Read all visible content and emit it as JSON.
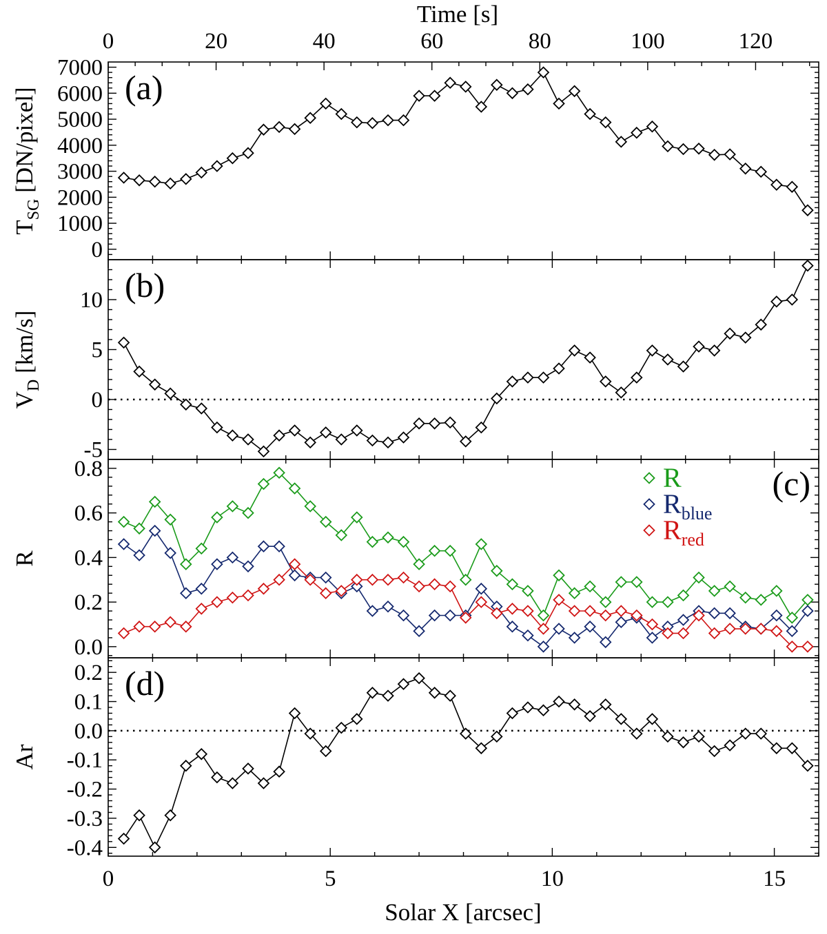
{
  "chart_data": {
    "type": "line",
    "figure": {
      "x_bottom_label": "Solar X [arcsec]",
      "x_top_label": "Time [s]",
      "x_bottom_range": [
        0,
        16
      ],
      "x_top_range": [
        0,
        131.7
      ],
      "x_bottom_ticks": [
        "0",
        "5",
        "10",
        "15"
      ],
      "x_bottom_tick_values": [
        0,
        5,
        10,
        15
      ],
      "x_top_ticks": [
        "0",
        "20",
        "40",
        "60",
        "80",
        "100",
        "120"
      ],
      "x_top_tick_values": [
        0,
        20,
        40,
        60,
        80,
        100,
        120
      ],
      "x": [
        0.35,
        0.7,
        1.05,
        1.4,
        1.75,
        2.1,
        2.45,
        2.8,
        3.15,
        3.5,
        3.85,
        4.2,
        4.55,
        4.9,
        5.25,
        5.6,
        5.95,
        6.3,
        6.65,
        7.0,
        7.35,
        7.7,
        8.05,
        8.4,
        8.75,
        9.1,
        9.45,
        9.8,
        10.15,
        10.5,
        10.85,
        11.2,
        11.55,
        11.9,
        12.25,
        12.6,
        12.95,
        13.3,
        13.65,
        14.0,
        14.35,
        14.7,
        15.05,
        15.4,
        15.75
      ]
    },
    "panels": [
      {
        "panel_label": "(a)",
        "ylabel_main": "T",
        "ylabel_sub": "SG",
        "ylabel_rest": " [DN/pixel]",
        "ylim": [
          -400,
          7200
        ],
        "y_ticks": [
          "0",
          "1000",
          "2000",
          "3000",
          "4000",
          "5000",
          "6000",
          "7000"
        ],
        "y_tick_values": [
          0,
          1000,
          2000,
          3000,
          4000,
          5000,
          6000,
          7000
        ],
        "zero_line": false,
        "series": [
          {
            "name": "T_SG",
            "color": "#000000",
            "values": [
              2750,
              2650,
              2600,
              2530,
              2700,
              2950,
              3200,
              3500,
              3700,
              4600,
              4700,
              4620,
              5050,
              5600,
              5200,
              4880,
              4850,
              4960,
              4960,
              5900,
              5900,
              6400,
              6250,
              5480,
              6320,
              6000,
              6150,
              6800,
              5600,
              6080,
              5200,
              4880,
              4130,
              4480,
              4720,
              3960,
              3850,
              3870,
              3630,
              3650,
              3100,
              2980,
              2480,
              2400,
              1500
            ]
          }
        ]
      },
      {
        "panel_label": "(b)",
        "ylabel_main": "V",
        "ylabel_sub": "D",
        "ylabel_rest": " [km/s]",
        "ylim": [
          -6.0,
          14.0
        ],
        "y_ticks": [
          "-5",
          "0",
          "5",
          "10"
        ],
        "y_tick_values": [
          -5,
          0,
          5,
          10
        ],
        "zero_line": true,
        "series": [
          {
            "name": "V_D",
            "color": "#000000",
            "values": [
              5.7,
              2.8,
              1.5,
              0.6,
              -0.5,
              -0.9,
              -2.8,
              -3.6,
              -4.0,
              -5.2,
              -3.6,
              -3.1,
              -4.3,
              -3.3,
              -4.0,
              -3.1,
              -4.1,
              -4.3,
              -3.8,
              -2.4,
              -2.4,
              -2.3,
              -4.2,
              -2.8,
              0.1,
              1.8,
              2.2,
              2.2,
              3.1,
              4.9,
              4.2,
              1.8,
              0.7,
              2.2,
              4.9,
              4.0,
              3.3,
              5.3,
              4.9,
              6.6,
              6.2,
              7.5,
              9.8,
              10.0,
              13.4
            ]
          }
        ]
      },
      {
        "panel_label": "(c)",
        "ylabel_main": "R",
        "ylabel_sub": "",
        "ylabel_rest": "",
        "ylim": [
          -0.05,
          0.84
        ],
        "y_ticks": [
          "0.0",
          "0.2",
          "0.4",
          "0.6",
          "0.8"
        ],
        "y_tick_values": [
          0.0,
          0.2,
          0.4,
          0.6,
          0.8
        ],
        "zero_line": false,
        "legend": [
          {
            "main": "R",
            "sub": "",
            "color": "#1a9b1a"
          },
          {
            "main": "R",
            "sub": "blue",
            "color": "#14286e"
          },
          {
            "main": "R",
            "sub": "red",
            "color": "#d01414"
          }
        ],
        "series": [
          {
            "name": "R",
            "color": "#1a9b1a",
            "values": [
              0.56,
              0.53,
              0.65,
              0.57,
              0.37,
              0.44,
              0.58,
              0.63,
              0.6,
              0.73,
              0.78,
              0.71,
              0.63,
              0.56,
              0.5,
              0.58,
              0.47,
              0.49,
              0.47,
              0.37,
              0.43,
              0.43,
              0.3,
              0.46,
              0.34,
              0.28,
              0.25,
              0.14,
              0.32,
              0.24,
              0.27,
              0.2,
              0.29,
              0.29,
              0.2,
              0.2,
              0.23,
              0.31,
              0.25,
              0.27,
              0.22,
              0.21,
              0.25,
              0.13,
              0.21
            ]
          },
          {
            "name": "R_blue",
            "color": "#14286e",
            "values": [
              0.46,
              0.41,
              0.52,
              0.42,
              0.24,
              0.26,
              0.37,
              0.4,
              0.36,
              0.45,
              0.45,
              0.32,
              0.31,
              0.31,
              0.24,
              0.27,
              0.16,
              0.18,
              0.14,
              0.07,
              0.14,
              0.14,
              0.14,
              0.26,
              0.18,
              0.09,
              0.05,
              0.0,
              0.08,
              0.04,
              0.09,
              0.02,
              0.11,
              0.13,
              0.04,
              0.09,
              0.12,
              0.16,
              0.15,
              0.15,
              0.09,
              0.08,
              0.14,
              0.07,
              0.16
            ]
          },
          {
            "name": "R_red",
            "color": "#d01414",
            "values": [
              0.06,
              0.09,
              0.09,
              0.11,
              0.09,
              0.17,
              0.2,
              0.22,
              0.23,
              0.26,
              0.3,
              0.37,
              0.3,
              0.24,
              0.25,
              0.3,
              0.3,
              0.3,
              0.31,
              0.27,
              0.28,
              0.27,
              0.13,
              0.2,
              0.15,
              0.17,
              0.16,
              0.08,
              0.21,
              0.16,
              0.16,
              0.14,
              0.16,
              0.14,
              0.1,
              0.06,
              0.06,
              0.14,
              0.06,
              0.08,
              0.08,
              0.08,
              0.07,
              0.0,
              0.0
            ]
          }
        ]
      },
      {
        "panel_label": "(d)",
        "ylabel_main": "Ar",
        "ylabel_sub": "",
        "ylabel_rest": "",
        "ylim": [
          -0.43,
          0.25
        ],
        "y_ticks": [
          "-0.4",
          "-0.3",
          "-0.2",
          "-0.1",
          "0.0",
          "0.1",
          "0.2"
        ],
        "y_tick_values": [
          -0.4,
          -0.3,
          -0.2,
          -0.1,
          0.0,
          0.1,
          0.2
        ],
        "zero_line": true,
        "series": [
          {
            "name": "Ar",
            "color": "#000000",
            "values": [
              -0.37,
              -0.29,
              -0.4,
              -0.29,
              -0.12,
              -0.08,
              -0.16,
              -0.18,
              -0.13,
              -0.18,
              -0.14,
              0.06,
              -0.01,
              -0.07,
              0.01,
              0.04,
              0.13,
              0.12,
              0.16,
              0.18,
              0.13,
              0.12,
              -0.01,
              -0.06,
              -0.02,
              0.06,
              0.08,
              0.07,
              0.1,
              0.09,
              0.05,
              0.09,
              0.04,
              -0.01,
              0.04,
              -0.02,
              -0.04,
              -0.02,
              -0.07,
              -0.05,
              -0.01,
              -0.01,
              -0.06,
              -0.06,
              -0.12
            ]
          }
        ]
      }
    ]
  }
}
